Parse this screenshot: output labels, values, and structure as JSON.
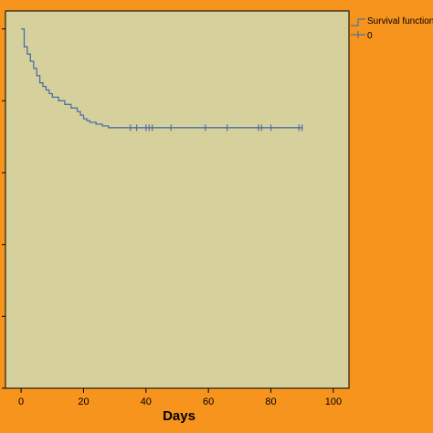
{
  "colors": {
    "page_background": "#f7941d",
    "plot_background": "#d6d19c",
    "curve": "#4a6fa5",
    "axis": "#000000"
  },
  "chart_data": {
    "type": "line",
    "subtype": "kaplan-meier step",
    "title": "",
    "xlabel": "Days",
    "ylabel": "",
    "xlim": [
      -5,
      105
    ],
    "ylim": [
      0,
      1.05
    ],
    "xticks": [
      0,
      20,
      40,
      60,
      80,
      100
    ],
    "x_tick_labels": [
      "0",
      "20",
      "40",
      "60",
      "80",
      "100"
    ],
    "grid": false,
    "legend": {
      "placement": "top-right",
      "entries": [
        "Survival function",
        "0"
      ]
    },
    "series": [
      {
        "name": "Survival function",
        "style": "step",
        "x": [
          0,
          1,
          2,
          3,
          4,
          5,
          6,
          7,
          8,
          9,
          10,
          12,
          14,
          16,
          18,
          19,
          20,
          21,
          22,
          24,
          26,
          28,
          90
        ],
        "y": [
          1.0,
          0.95,
          0.93,
          0.91,
          0.89,
          0.87,
          0.85,
          0.84,
          0.83,
          0.82,
          0.81,
          0.8,
          0.79,
          0.78,
          0.77,
          0.76,
          0.75,
          0.745,
          0.74,
          0.735,
          0.73,
          0.725,
          0.725
        ]
      },
      {
        "name": "0",
        "style": "censored-markers",
        "x": [
          35,
          37,
          40,
          41,
          42,
          48,
          59,
          66,
          76,
          77,
          80,
          89,
          90
        ],
        "y": [
          0.725,
          0.725,
          0.725,
          0.725,
          0.725,
          0.725,
          0.725,
          0.725,
          0.725,
          0.725,
          0.725,
          0.725,
          0.725
        ]
      }
    ]
  }
}
